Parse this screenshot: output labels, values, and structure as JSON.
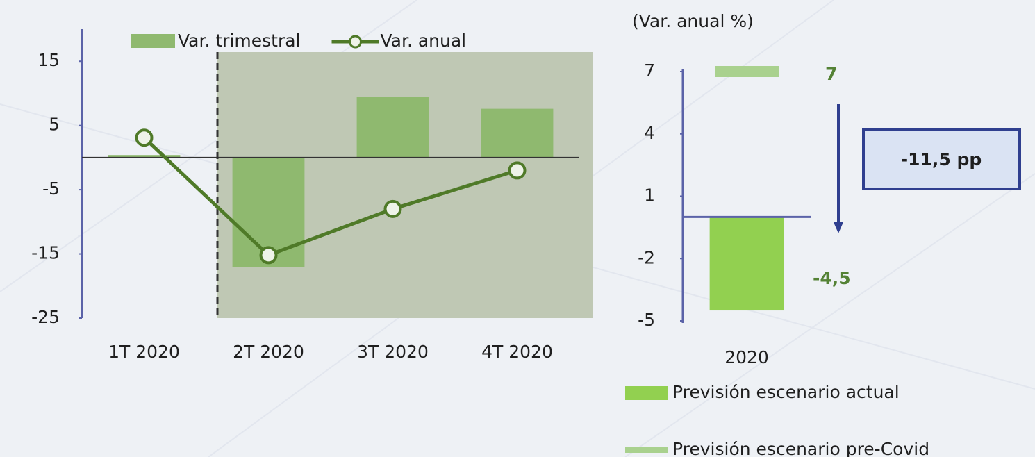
{
  "chart_data": [
    {
      "type": "combo",
      "categories": [
        "1T 2020",
        "2T 2020",
        "3T 2020",
        "4T 2020"
      ],
      "series": [
        {
          "name": "Var. trimestral",
          "kind": "bar",
          "color": "#8fb96f",
          "values": [
            0.4,
            -17,
            9.5,
            7.6
          ]
        },
        {
          "name": "Var. anual",
          "kind": "line",
          "color": "#4f7a28",
          "values": [
            3.1,
            -15.2,
            -8,
            -2
          ]
        }
      ],
      "ylim": [
        -25,
        20
      ],
      "yticks": [
        15,
        5,
        -5,
        -15,
        -25
      ]
    },
    {
      "type": "bar",
      "title": "(Var. anual %)",
      "categories": [
        "2020"
      ],
      "series": [
        {
          "name": "Previsión escenario actual",
          "kind": "bar",
          "color": "#92d050",
          "values": [
            -4.5
          ],
          "value_labels": [
            "-4,5"
          ]
        },
        {
          "name": "Previsión escenario pre-Covid",
          "kind": "dash",
          "color": "#a9d18e",
          "values": [
            7
          ],
          "value_labels": [
            "7"
          ]
        }
      ],
      "annotation": "-11,5 pp",
      "ylim": [
        -5,
        7
      ],
      "yticks": [
        7,
        4,
        1,
        -2,
        -5
      ]
    }
  ]
}
